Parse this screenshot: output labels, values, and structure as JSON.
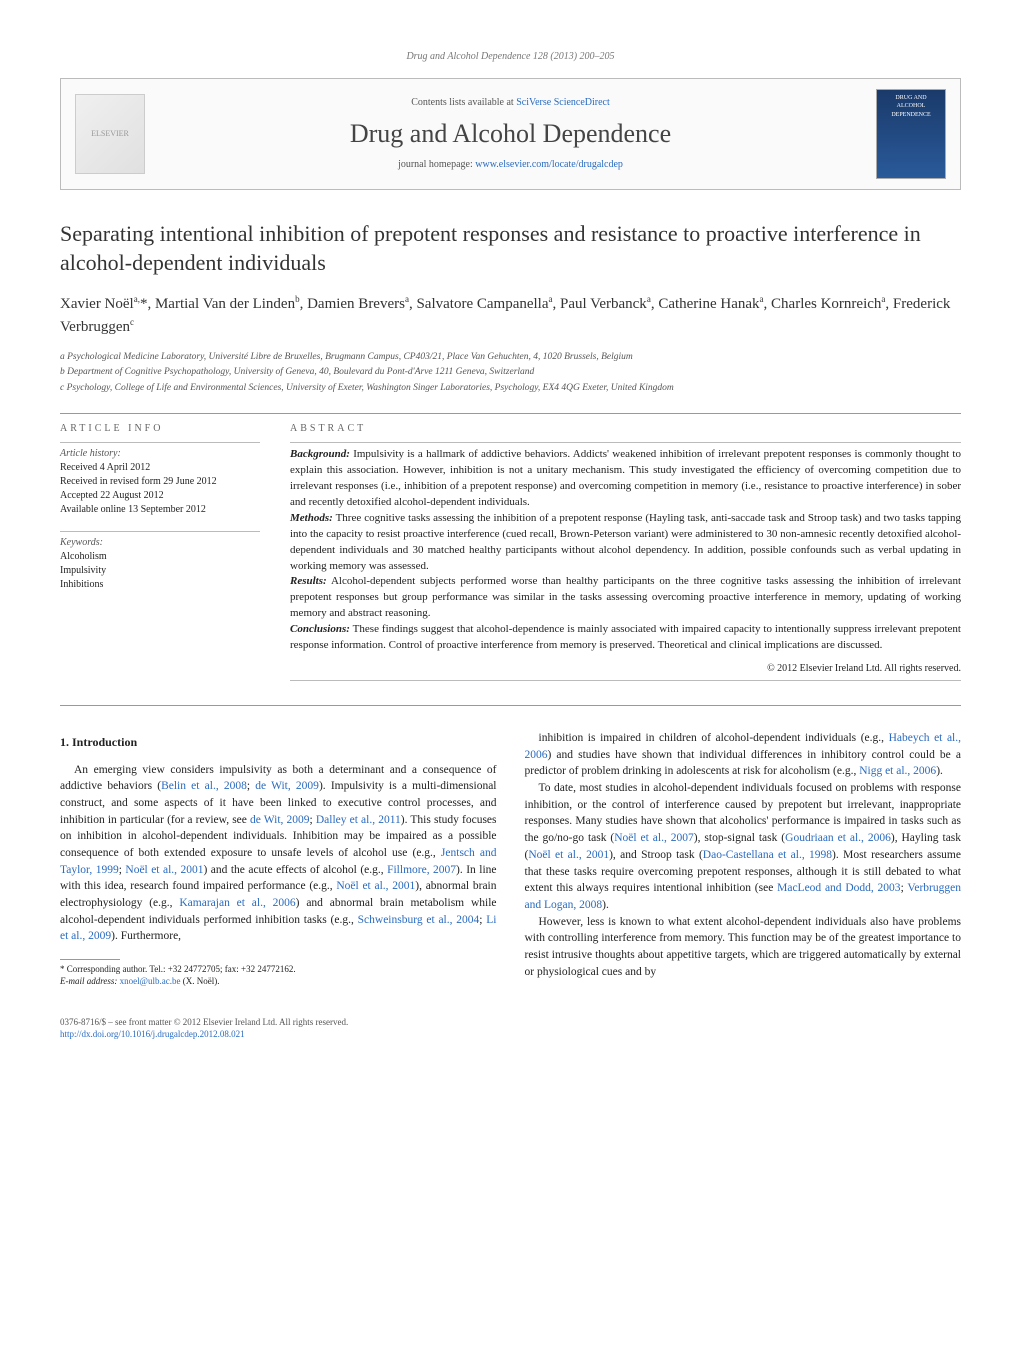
{
  "header_line": "Drug and Alcohol Dependence 128 (2013) 200–205",
  "banner": {
    "publisher_logo_text": "ELSEVIER",
    "contents_line_prefix": "Contents lists available at ",
    "contents_link": "SciVerse ScienceDirect",
    "journal_title": "Drug and Alcohol Dependence",
    "homepage_prefix": "journal homepage: ",
    "homepage_link": "www.elsevier.com/locate/drugalcdep",
    "cover_text": "DRUG AND ALCOHOL DEPENDENCE"
  },
  "article_title": "Separating intentional inhibition of prepotent responses and resistance to proactive interference in alcohol-dependent individuals",
  "authors_html": "Xavier Noël<sup>a,</sup>*, Martial Van der Linden<sup>b</sup>, Damien Brevers<sup>a</sup>, Salvatore Campanella<sup>a</sup>, Paul Verbanck<sup>a</sup>, Catherine Hanak<sup>a</sup>, Charles Kornreich<sup>a</sup>, Frederick Verbruggen<sup>c</sup>",
  "affiliations": [
    "a Psychological Medicine Laboratory, Université Libre de Bruxelles, Brugmann Campus, CP403/21, Place Van Gehuchten, 4, 1020 Brussels, Belgium",
    "b Department of Cognitive Psychopathology, University of Geneva, 40, Boulevard du Pont-d'Arve 1211 Geneva, Switzerland",
    "c Psychology, College of Life and Environmental Sciences, University of Exeter, Washington Singer Laboratories, Psychology, EX4 4QG Exeter, United Kingdom"
  ],
  "article_info": {
    "heading": "ARTICLE INFO",
    "history_label": "Article history:",
    "history": [
      "Received 4 April 2012",
      "Received in revised form 29 June 2012",
      "Accepted 22 August 2012",
      "Available online 13 September 2012"
    ],
    "keywords_label": "Keywords:",
    "keywords": [
      "Alcoholism",
      "Impulsivity",
      "Inhibitions"
    ]
  },
  "abstract": {
    "heading": "ABSTRACT",
    "sections": [
      {
        "label": "Background:",
        "text": "Impulsivity is a hallmark of addictive behaviors. Addicts' weakened inhibition of irrelevant prepotent responses is commonly thought to explain this association. However, inhibition is not a unitary mechanism. This study investigated the efficiency of overcoming competition due to irrelevant responses (i.e., inhibition of a prepotent response) and overcoming competition in memory (i.e., resistance to proactive interference) in sober and recently detoxified alcohol-dependent individuals."
      },
      {
        "label": "Methods:",
        "text": "Three cognitive tasks assessing the inhibition of a prepotent response (Hayling task, anti-saccade task and Stroop task) and two tasks tapping into the capacity to resist proactive interference (cued recall, Brown-Peterson variant) were administered to 30 non-amnesic recently detoxified alcohol-dependent individuals and 30 matched healthy participants without alcohol dependency. In addition, possible confounds such as verbal updating in working memory was assessed."
      },
      {
        "label": "Results:",
        "text": "Alcohol-dependent subjects performed worse than healthy participants on the three cognitive tasks assessing the inhibition of irrelevant prepotent responses but group performance was similar in the tasks assessing overcoming proactive interference in memory, updating of working memory and abstract reasoning."
      },
      {
        "label": "Conclusions:",
        "text": "These findings suggest that alcohol-dependence is mainly associated with impaired capacity to intentionally suppress irrelevant prepotent response information. Control of proactive interference from memory is preserved. Theoretical and clinical implications are discussed."
      }
    ],
    "copyright": "© 2012 Elsevier Ireland Ltd. All rights reserved."
  },
  "body": {
    "section_heading": "1. Introduction",
    "col1_p1": "An emerging view considers impulsivity as both a determinant and a consequence of addictive behaviors (",
    "col1_p1_links": [
      "Belin et al., 2008",
      "de Wit, 2009"
    ],
    "col1_p1_cont": "). Impulsivity is a multi-dimensional construct, and some aspects of it have been linked to executive control processes, and inhibition in particular (for a review, see ",
    "col1_p1_links2": [
      "de Wit, 2009",
      "Dalley et al., 2011"
    ],
    "col1_p1_cont2": "). This study focuses on inhibition in alcohol-dependent individuals. Inhibition may be impaired as a possible consequence of both extended exposure to unsafe levels of alcohol use (e.g., ",
    "col1_p1_links3": [
      "Jentsch and Taylor, 1999",
      "Noël et al., 2001"
    ],
    "col1_p1_cont3": ") and the acute effects of alcohol (e.g., ",
    "col1_p1_links4": [
      "Fillmore, 2007"
    ],
    "col1_p1_cont4": "). In line with this idea, research found impaired performance (e.g., ",
    "col1_p1_links5": [
      "Noël et al., 2001"
    ],
    "col1_p1_cont5": "), abnormal brain electrophysiology (e.g., ",
    "col1_p1_links6": [
      "Kamarajan et al., 2006"
    ],
    "col1_p1_cont6": ") and abnormal brain metabolism while alcohol-dependent individuals performed inhibition tasks (e.g., ",
    "col1_p1_links7": [
      "Schweinsburg et al., 2004",
      "Li et al., 2009"
    ],
    "col1_p1_cont7": "). Furthermore,",
    "col2_p1": "inhibition is impaired in children of alcohol-dependent individuals (e.g., ",
    "col2_l1": "Habeych et al., 2006",
    "col2_p1b": ") and studies have shown that individual differences in inhibitory control could be a predictor of problem drinking in adolescents at risk for alcoholism (e.g., ",
    "col2_l2": "Nigg et al., 2006",
    "col2_p1c": ").",
    "col2_p2": "To date, most studies in alcohol-dependent individuals focused on problems with response inhibition, or the control of interference caused by prepotent but irrelevant, inappropriate responses. Many studies have shown that alcoholics' performance is impaired in tasks such as the go/no-go task (",
    "col2_l3": "Noël et al., 2007",
    "col2_p2b": "), stop-signal task (",
    "col2_l4": "Goudriaan et al., 2006",
    "col2_p2c": "), Hayling task (",
    "col2_l5": "Noël et al., 2001",
    "col2_p2d": "), and Stroop task (",
    "col2_l6": "Dao-Castellana et al., 1998",
    "col2_p2e": "). Most researchers assume that these tasks require overcoming prepotent responses, although it is still debated to what extent this always requires intentional inhibition (see ",
    "col2_l7": "MacLeod and Dodd, 2003",
    "col2_l8": "Verbruggen and Logan, 2008",
    "col2_p2f": ").",
    "col2_p3": "However, less is known to what extent alcohol-dependent individuals also have problems with controlling interference from memory. This function may be of the greatest importance to resist intrusive thoughts about appetitive targets, which are triggered automatically by external or physiological cues and by"
  },
  "footnote": {
    "corr_label": "* Corresponding author. Tel.: +32 24772705; fax: +32 24772162.",
    "email_label": "E-mail address: ",
    "email": "xnoel@ulb.ac.be",
    "email_suffix": " (X. Noël)."
  },
  "footer": {
    "line1": "0376-8716/$ – see front matter © 2012 Elsevier Ireland Ltd. All rights reserved.",
    "doi": "http://dx.doi.org/10.1016/j.drugalcdep.2012.08.021"
  }
}
